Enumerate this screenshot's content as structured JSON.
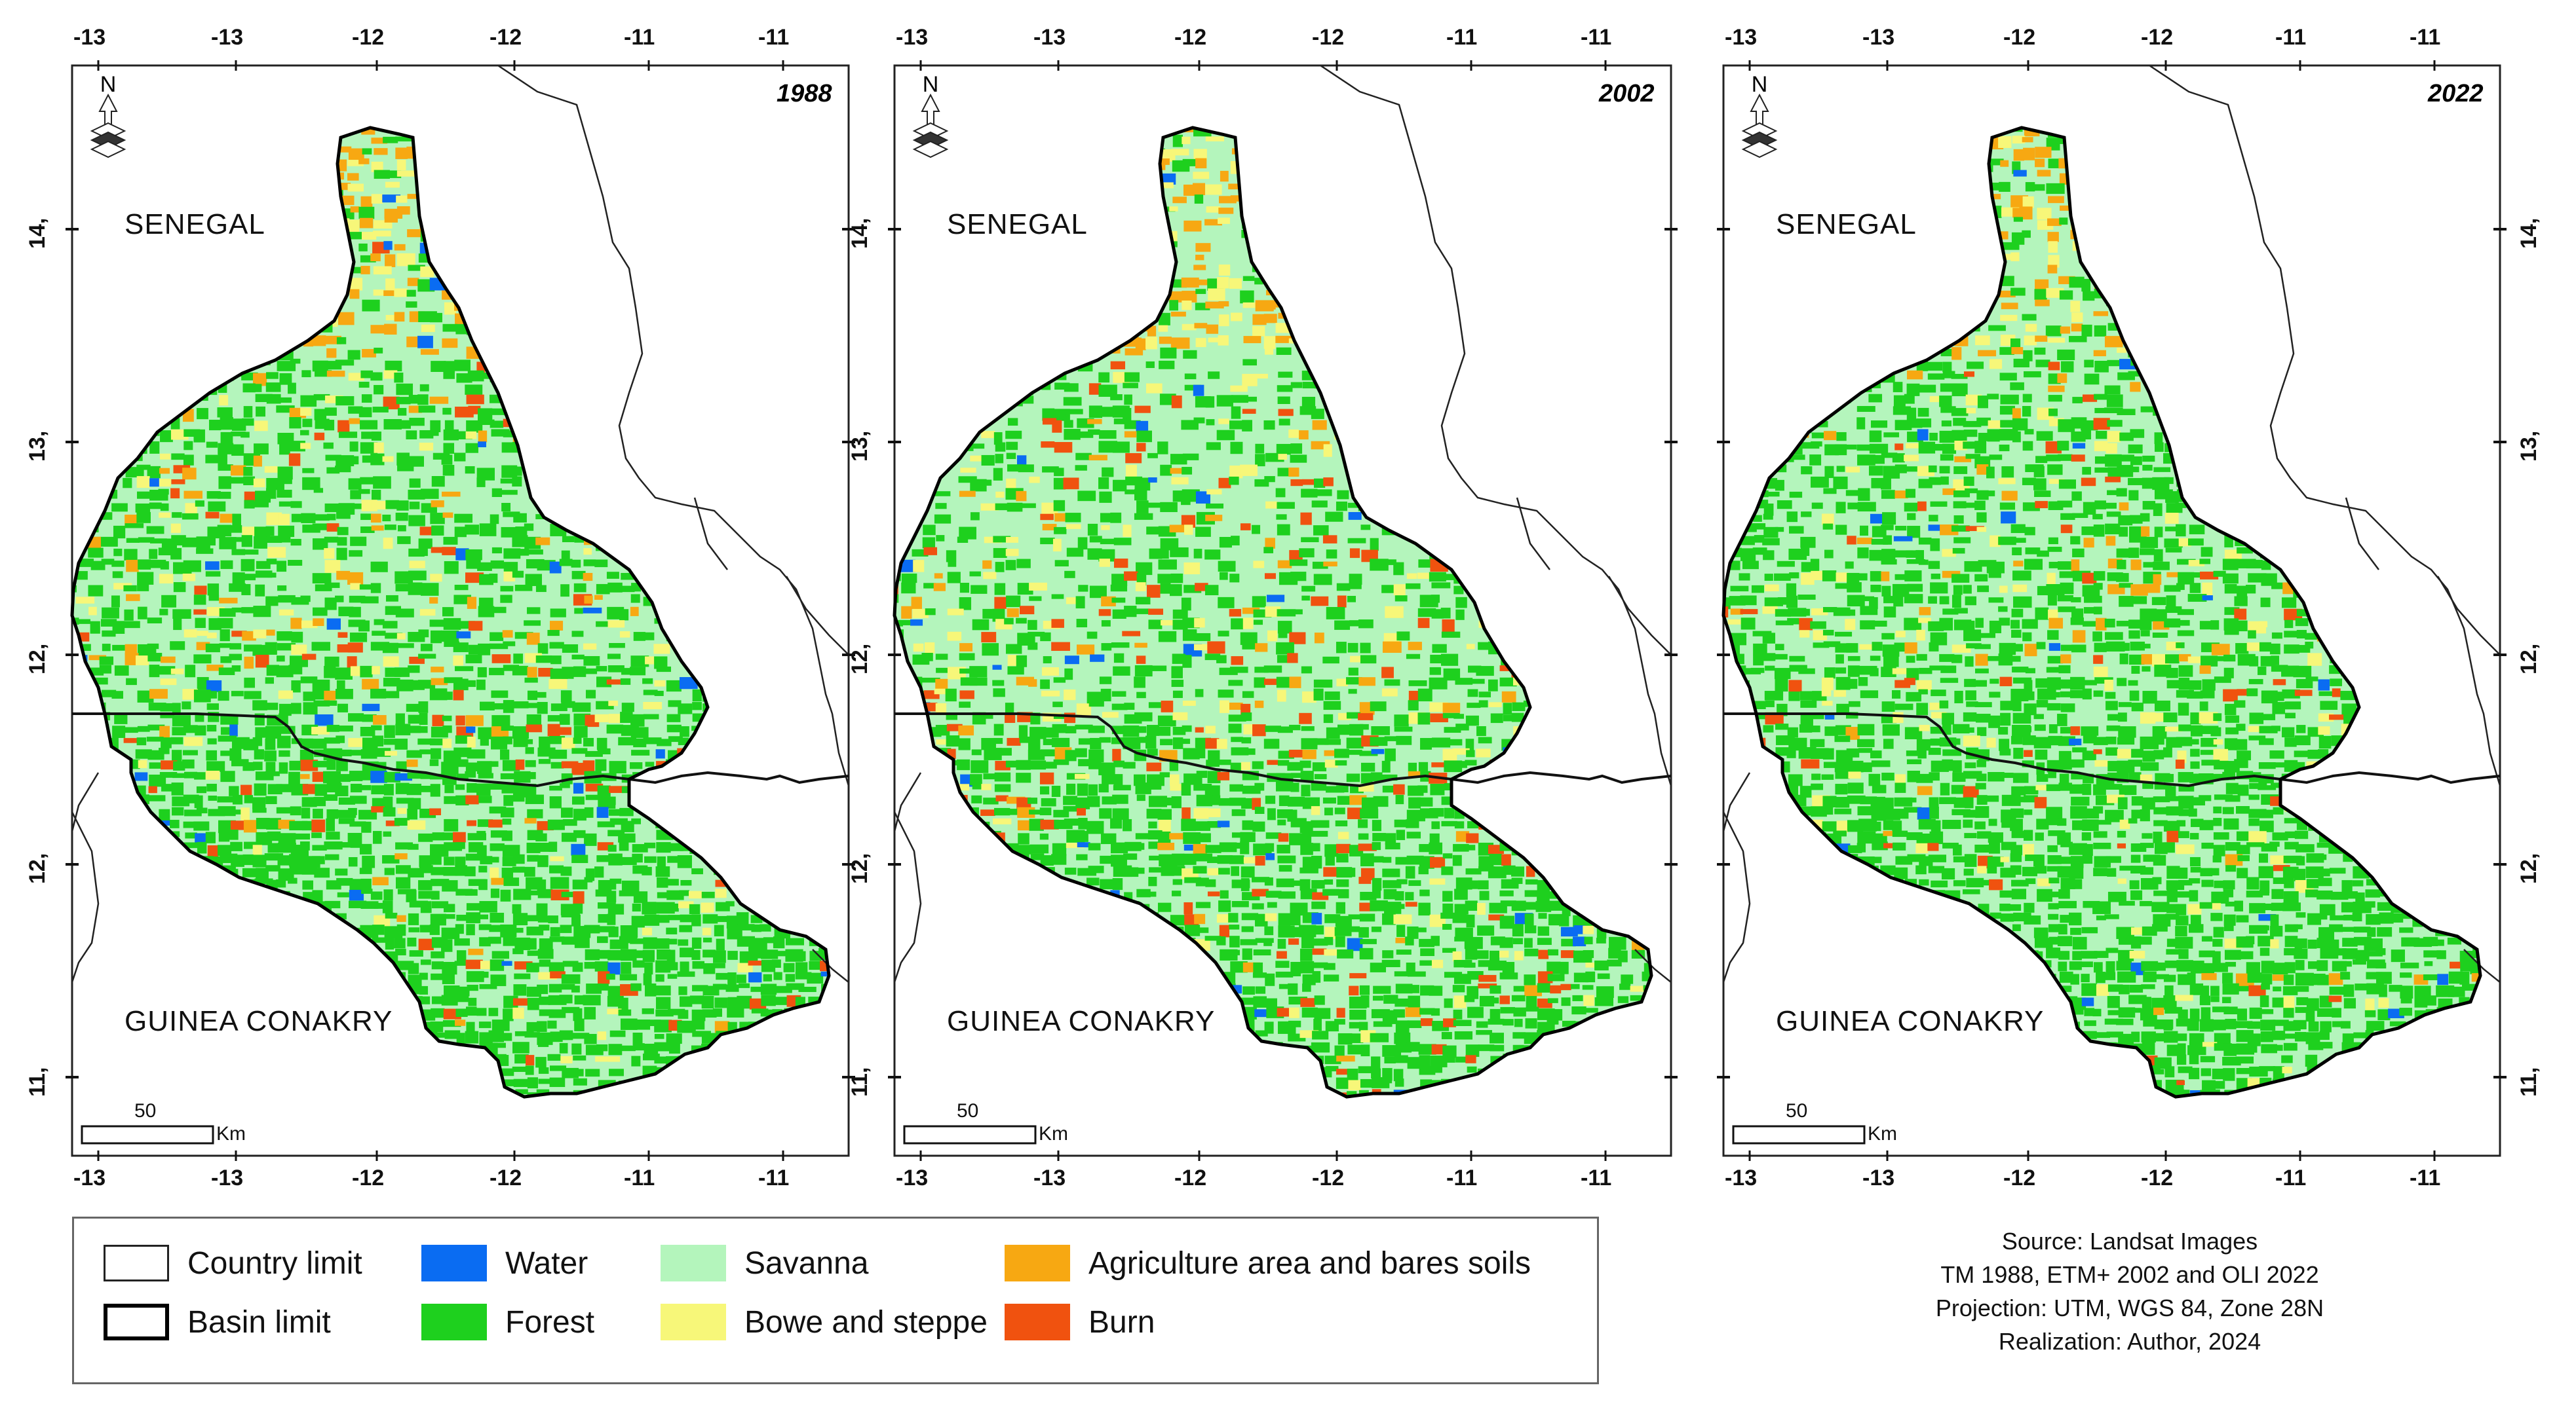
{
  "panels": [
    {
      "year": "1988",
      "senegal": "SENEGAL",
      "guinea": "GUINEA CONAKRY",
      "scale": "50",
      "unit": "Km"
    },
    {
      "year": "2002",
      "senegal": "SENEGAL",
      "guinea": "GUINEA CONAKRY",
      "scale": "50",
      "unit": "Km"
    },
    {
      "year": "2022",
      "senegal": "SENEGAL",
      "guinea": "GUINEA CONAKRY",
      "scale": "50",
      "unit": "Km"
    }
  ],
  "x_ticks": [
    "-13",
    "-13",
    "-12",
    "-12",
    "-11",
    "-11"
  ],
  "y_ticks": [
    "14,",
    "13,",
    "12,",
    "12,",
    "11,"
  ],
  "north_label": "N",
  "legend": {
    "items": [
      {
        "label": "Country limit",
        "color": "#ffffff"
      },
      {
        "label": "Basin limit",
        "color": "#ffffff"
      },
      {
        "label": "Water",
        "color": "#0a6cf2"
      },
      {
        "label": "Forest",
        "color": "#1ed01e"
      },
      {
        "label": "Savanna",
        "color": "#b4f5bc"
      },
      {
        "label": "Bowe and steppe",
        "color": "#f7f779"
      },
      {
        "label": "Agriculture area and bares soils",
        "color": "#f7a812"
      },
      {
        "label": "Burn",
        "color": "#f0520f"
      }
    ]
  },
  "source_lines": [
    "Source: Landsat Images",
    "TM 1988, ETM+ 2002 and OLI 2022",
    "Projection: UTM, WGS 84, Zone 28N",
    "Realization: Author, 2024"
  ],
  "colors": {
    "forest": "#1ed01e",
    "savanna": "#b4f5bc",
    "bowe": "#f7f779",
    "agriculture": "#f7a812",
    "burn": "#f0520f",
    "water": "#0a6cf2"
  }
}
